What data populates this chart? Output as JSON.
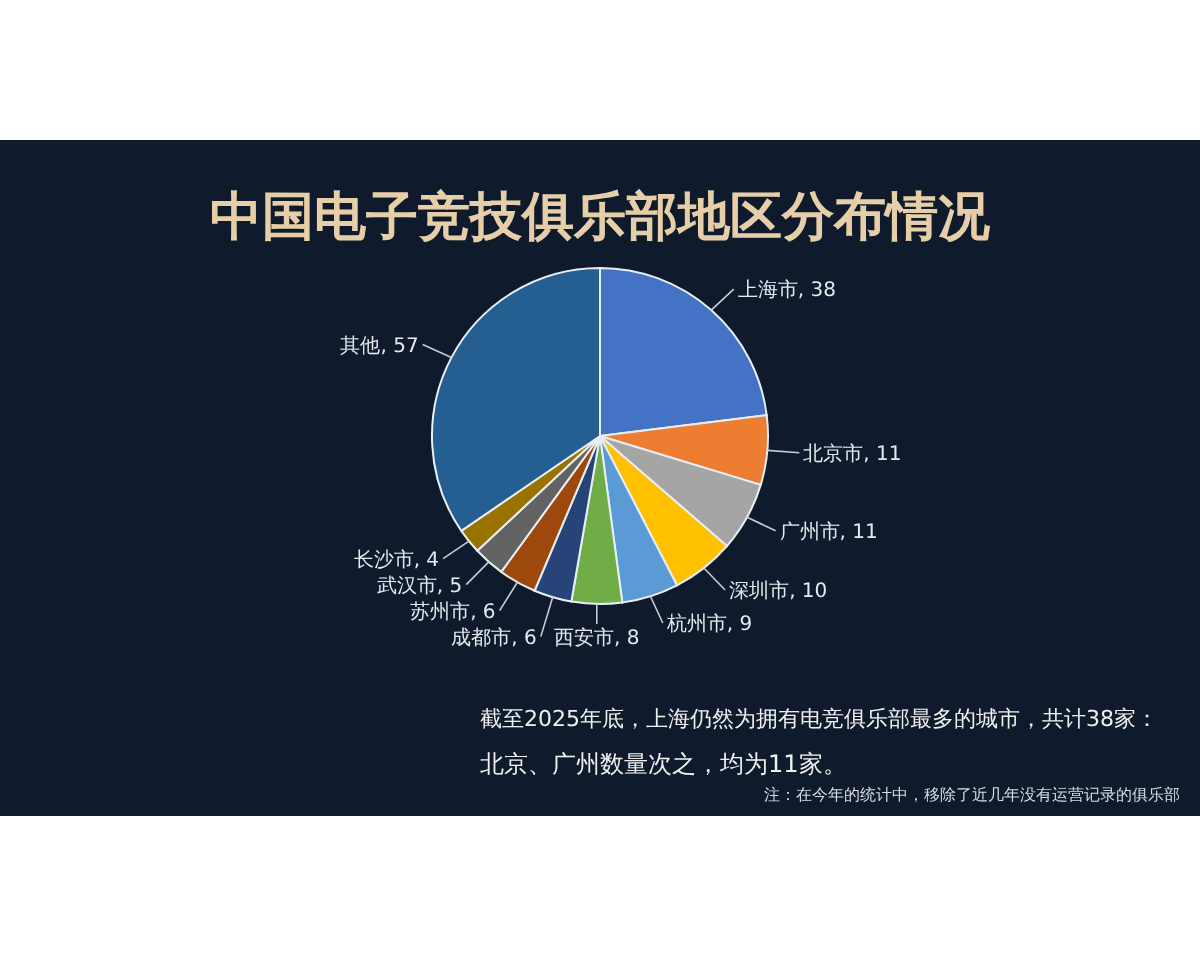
{
  "chart_data": {
    "type": "pie",
    "title": "中国电子竞技俱乐部地区分布情况",
    "categories": [
      "上海市",
      "北京市",
      "广州市",
      "深圳市",
      "杭州市",
      "西安市",
      "成都市",
      "苏州市",
      "武汉市",
      "长沙市",
      "其他"
    ],
    "values": [
      38,
      11,
      11,
      10,
      9,
      8,
      6,
      6,
      5,
      4,
      57
    ],
    "colors": [
      "#4472c4",
      "#ed7d31",
      "#a5a5a5",
      "#ffc000",
      "#5b9bd5",
      "#70ad47",
      "#264478",
      "#9e480e",
      "#636363",
      "#997300",
      "#255e91"
    ],
    "value_labels": [
      ", 38",
      ", 11",
      ", 11",
      ", 10",
      ", 9",
      ", 8",
      ", 6",
      ", 6",
      ", 5",
      ", 4",
      ", 57"
    ],
    "annotations": [
      "截至2025年底，上海仍然为拥有电竞俱乐部最多的城市，共计38家：",
      "北京、广州数量次之，均为11家。",
      "注：在今年的统计中，移除了近几年没有运营记录的俱乐部"
    ]
  }
}
